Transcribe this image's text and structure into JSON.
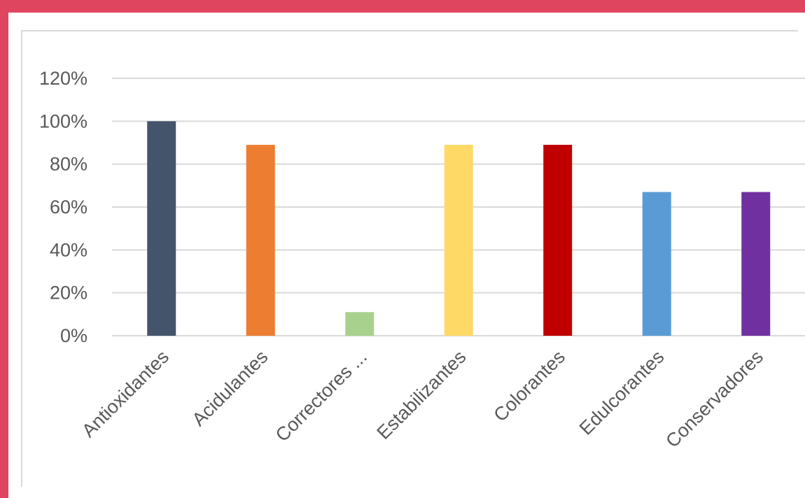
{
  "chart_data": {
    "type": "bar",
    "title": "",
    "xlabel": "",
    "ylabel": "",
    "categories": [
      "Antioxidantes",
      "Acidulantes",
      "Correctores ...",
      "Estabilizantes",
      "Colorantes",
      "Edulcorantes",
      "Conservadores"
    ],
    "values": [
      100,
      89,
      11,
      89,
      89,
      67,
      67
    ],
    "colors": [
      "#44546a",
      "#ed7d31",
      "#a9d18e",
      "#ffd966",
      "#c00000",
      "#5b9bd5",
      "#7030a0"
    ],
    "ylim": [
      0,
      120
    ],
    "yticks": [
      "0%",
      "20%",
      "40%",
      "60%",
      "80%",
      "100%",
      "120%"
    ],
    "grid": true,
    "gridColor": "#d9d9d9"
  }
}
